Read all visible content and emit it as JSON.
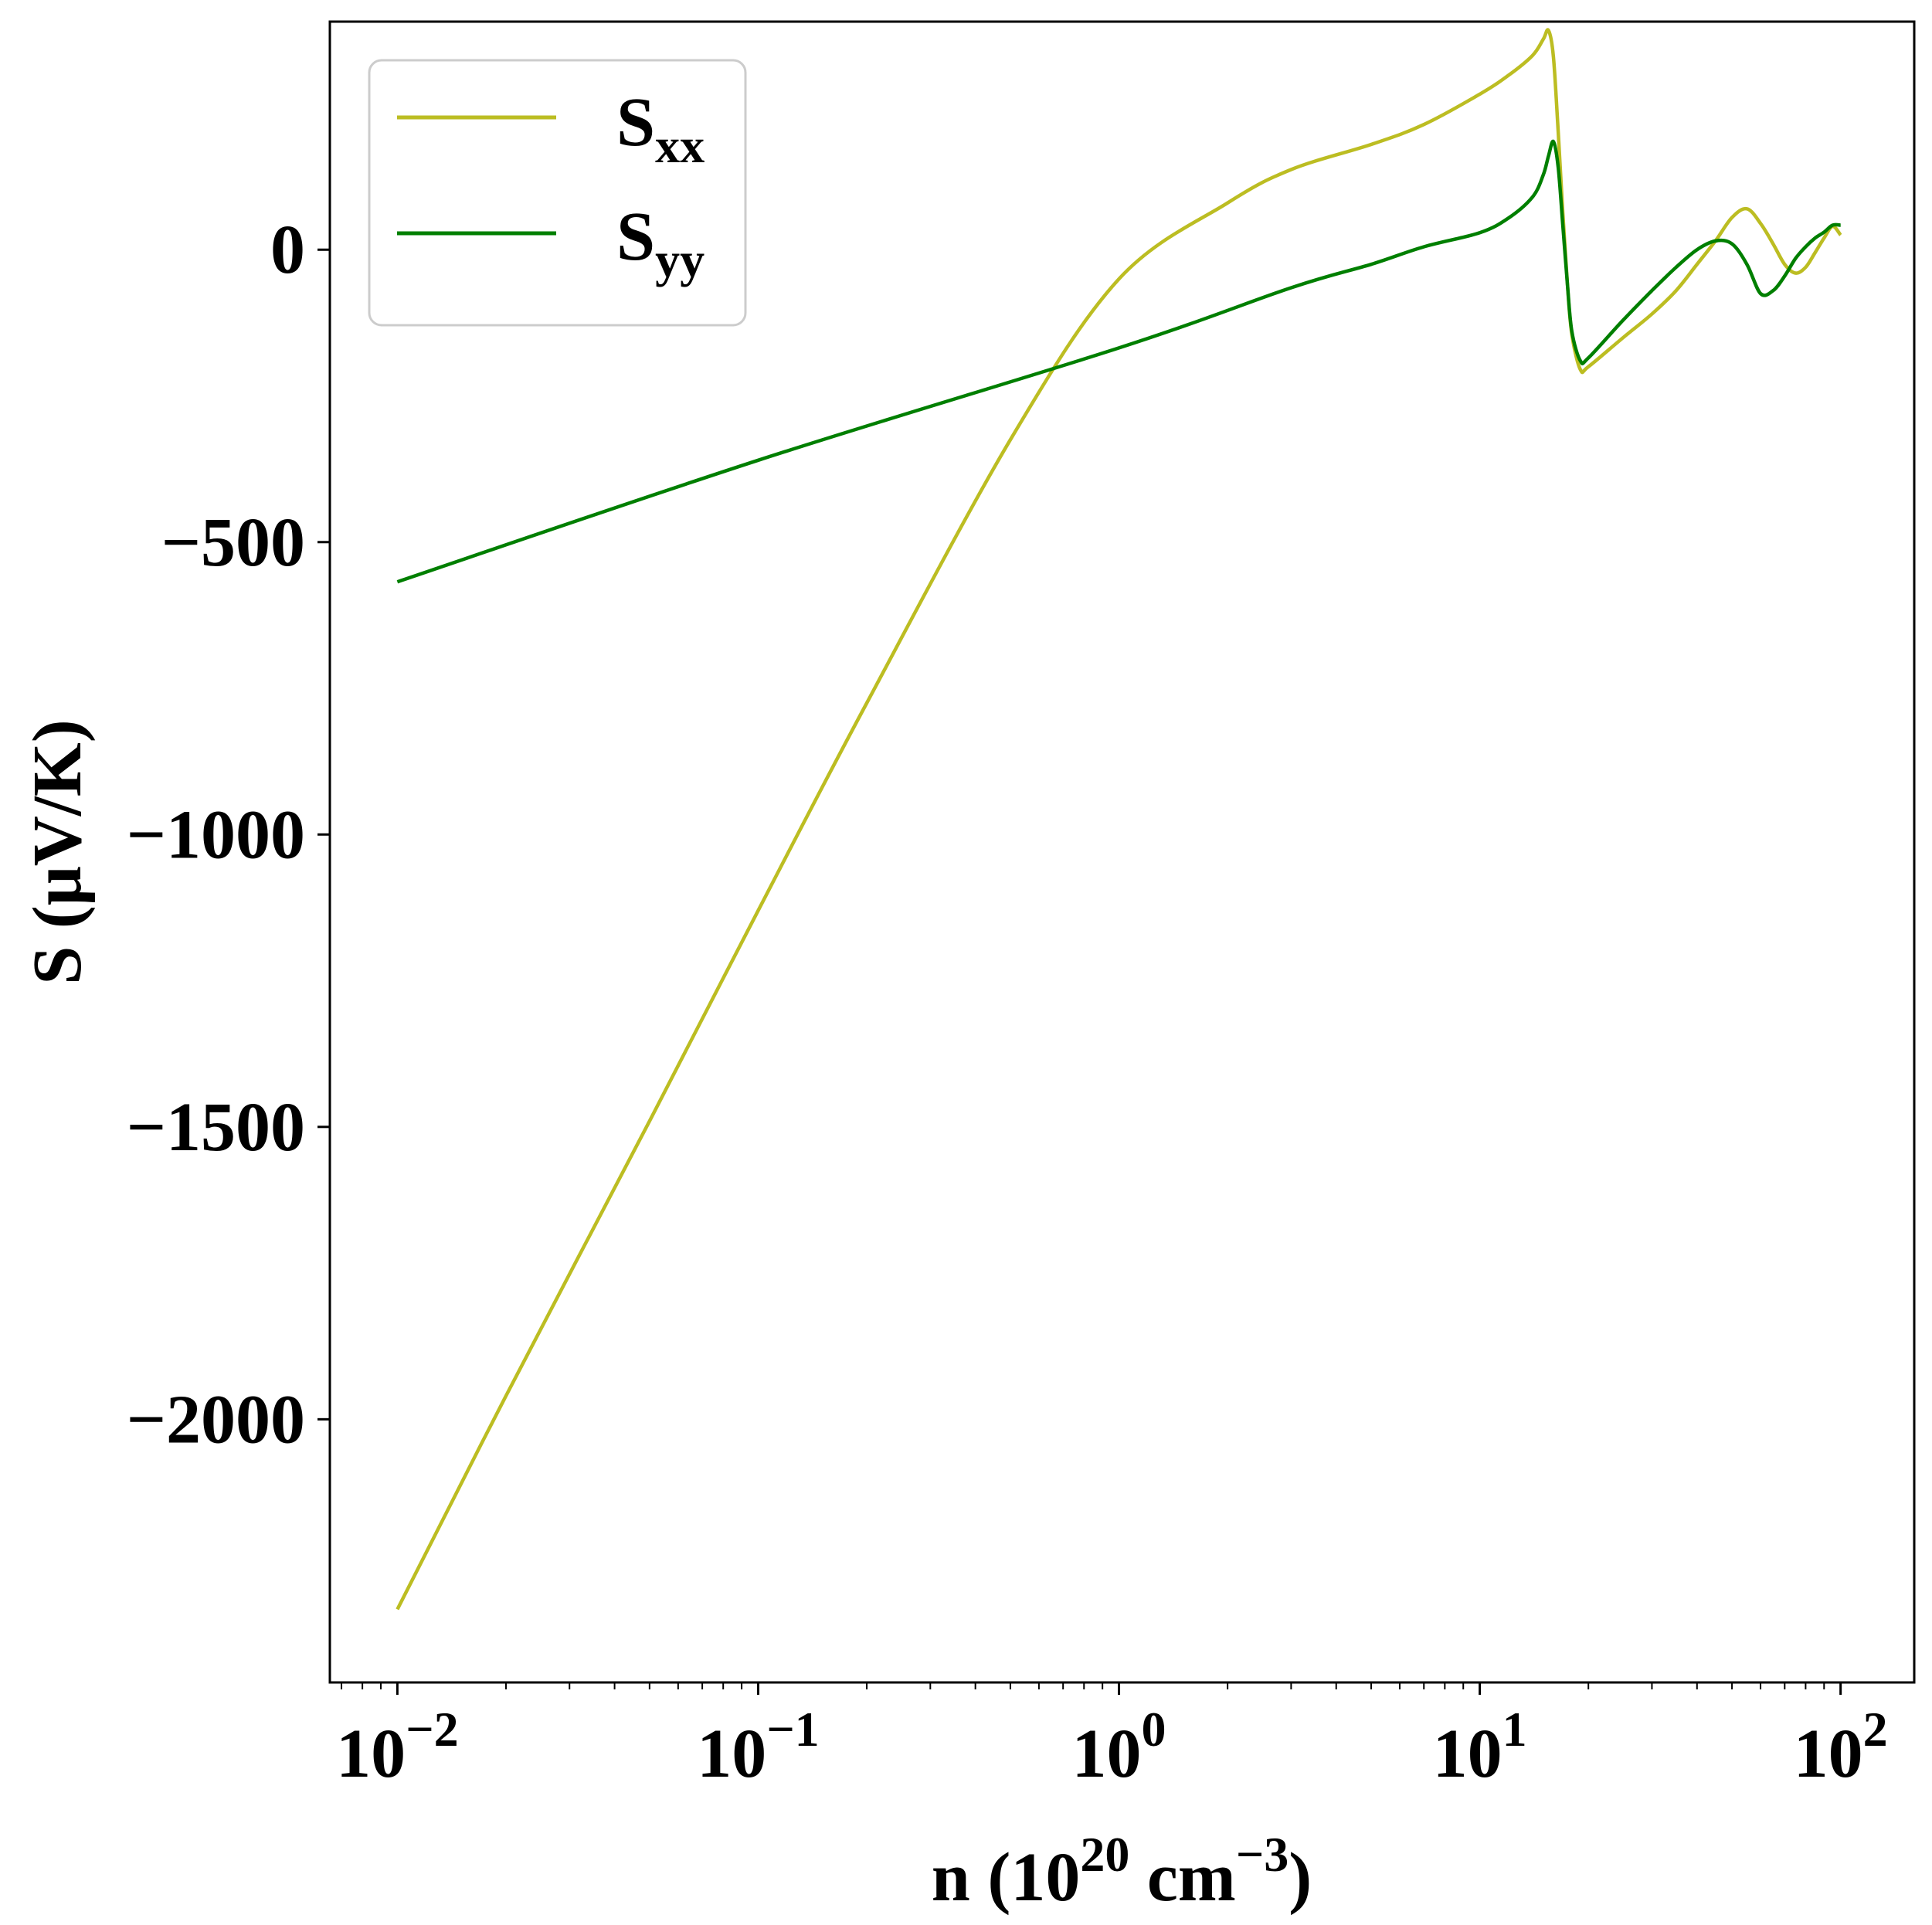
{
  "chart_data": {
    "type": "line",
    "xscale": "log",
    "xlim": [
      0.0065,
      160
    ],
    "ylim": [
      -2450,
      390
    ],
    "grid": false,
    "legend_position": "top-left",
    "xlabel": {
      "base": "n (10",
      "sup1": "20",
      "mid": " cm",
      "sup2": "−3",
      "end": ")"
    },
    "ylabel": "S (μV/K)",
    "x_ticks": [
      {
        "value": 0.01,
        "base": "10",
        "exp": "−2"
      },
      {
        "value": 0.1,
        "base": "10",
        "exp": "−1"
      },
      {
        "value": 1,
        "base": "10",
        "exp": "0"
      },
      {
        "value": 10,
        "base": "10",
        "exp": "1"
      },
      {
        "value": 100,
        "base": "10",
        "exp": "2"
      }
    ],
    "y_ticks": [
      {
        "value": 0,
        "label": "0"
      },
      {
        "value": -500,
        "label": "−500"
      },
      {
        "value": -1000,
        "label": "−1000"
      },
      {
        "value": -1500,
        "label": "−1500"
      },
      {
        "value": -2000,
        "label": "−2000"
      }
    ],
    "series": [
      {
        "name": "S",
        "name_sub": "xx",
        "color": "#bcbd22",
        "x": [
          0.01,
          0.02,
          0.05,
          0.1,
          0.2,
          0.5,
          1,
          2,
          3,
          5,
          7,
          10,
          12,
          14,
          15,
          15.5,
          16,
          16.5,
          17,
          17.5,
          18,
          19,
          20,
          25,
          30,
          35,
          40,
          45,
          50,
          55,
          60,
          65,
          70,
          75,
          80,
          85,
          90,
          95,
          100
        ],
        "y": [
          -2325,
          -1960,
          -1490,
          -1130,
          -775,
          -325,
          -50,
          80,
          137,
          180,
          214,
          266,
          298,
          332,
          360,
          375,
          330,
          200,
          60,
          -60,
          -145,
          -205,
          -200,
          -150,
          -110,
          -70,
          -25,
          15,
          55,
          70,
          45,
          10,
          -25,
          -40,
          -30,
          -5,
          20,
          40,
          25
        ]
      },
      {
        "name": "S",
        "name_sub": "yy",
        "color": "#007f00",
        "x": [
          0.01,
          0.1,
          1,
          3,
          5,
          7,
          10,
          12,
          14,
          15,
          15.5,
          16,
          16.5,
          17,
          17.5,
          18,
          19,
          20,
          25,
          30,
          35,
          40,
          45,
          50,
          55,
          60,
          65,
          70,
          75,
          80,
          85,
          90,
          95,
          100
        ],
        "y": [
          -568,
          -360,
          -168,
          -65,
          -25,
          5,
          29,
          54,
          90,
          128,
          160,
          185,
          140,
          40,
          -60,
          -140,
          -190,
          -185,
          -120,
          -70,
          -30,
          0,
          15,
          10,
          -25,
          -75,
          -70,
          -45,
          -15,
          5,
          20,
          30,
          42,
          42
        ]
      }
    ]
  }
}
